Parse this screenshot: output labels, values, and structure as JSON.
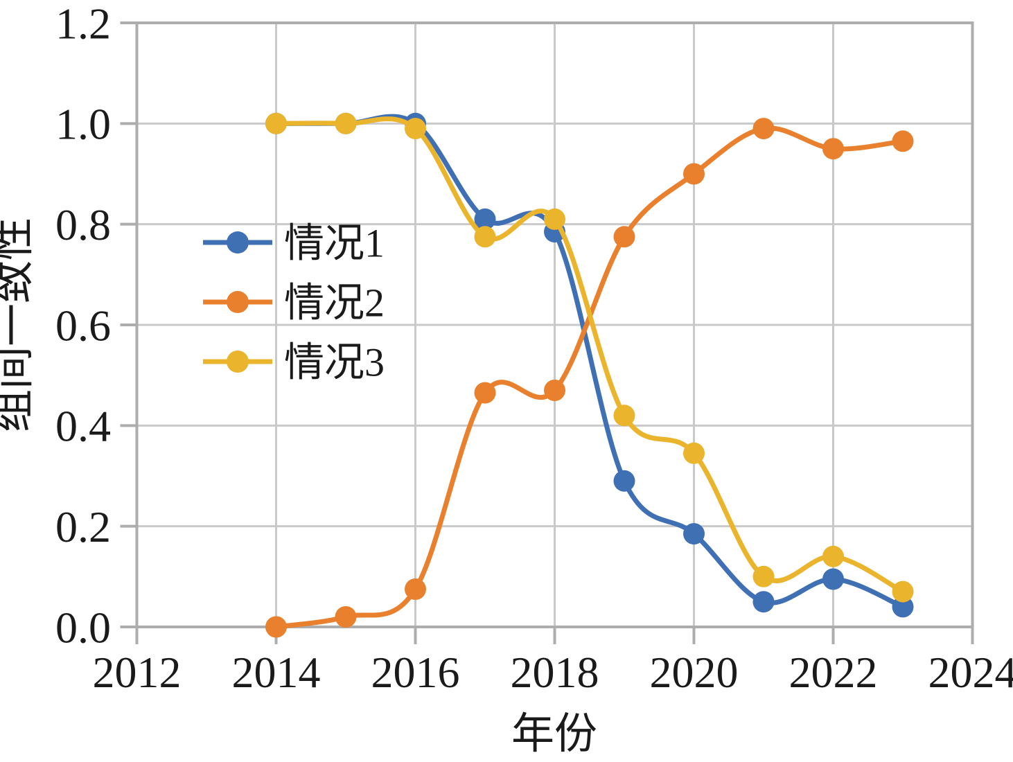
{
  "figure": {
    "background": "#ffffff"
  },
  "styles": {
    "grid_color": "#c9c9c9",
    "spine_color": "#adadad",
    "tick_color": "#adadad",
    "text_color": "#1a1a1a",
    "series_colors": [
      "#4070b4",
      "#e8802e",
      "#eab42d"
    ]
  },
  "chart_data": {
    "type": "line",
    "title": "",
    "xlabel": "年份",
    "ylabel": "组间一致性",
    "x": [
      2014,
      2015,
      2016,
      2017,
      2018,
      2019,
      2020,
      2021,
      2022,
      2023
    ],
    "series": [
      {
        "name": "情况1",
        "color": "#4070b4",
        "values": [
          1.0,
          1.0,
          1.0,
          0.81,
          0.785,
          0.29,
          0.185,
          0.05,
          0.095,
          0.04
        ]
      },
      {
        "name": "情况2",
        "color": "#e8802e",
        "values": [
          0.0,
          0.02,
          0.075,
          0.465,
          0.47,
          0.775,
          0.9,
          0.99,
          0.95,
          0.965
        ]
      },
      {
        "name": "情况3",
        "color": "#eab42d",
        "values": [
          1.0,
          1.0,
          0.99,
          0.775,
          0.81,
          0.42,
          0.345,
          0.1,
          0.14,
          0.07
        ]
      }
    ],
    "xlim": [
      2012,
      2024
    ],
    "ylim": [
      0.0,
      1.2
    ],
    "xticks": [
      "2012",
      "2014",
      "2016",
      "2018",
      "2020",
      "2022",
      "2024"
    ],
    "yticks": [
      "0.0",
      "0.2",
      "0.4",
      "0.6",
      "0.8",
      "1.0",
      "1.2"
    ],
    "grid": true,
    "legend_position": "upper-left-inside",
    "line_smoothing": "spline",
    "markers": true
  }
}
